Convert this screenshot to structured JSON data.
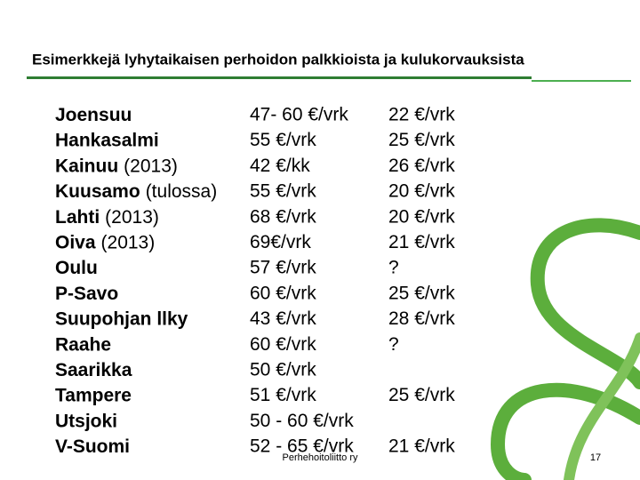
{
  "header": {
    "title": "Esimerkkejä lyhytaikaisen perhoidon palkkioista ja kulukorvauksista"
  },
  "table": {
    "rows": [
      {
        "name": "Joensuu",
        "fee": "47- 60 €/vrk",
        "cost": "22 €/vrk"
      },
      {
        "name": "Hankasalmi",
        "fee": "55 €/vrk",
        "cost": "25 €/vrk"
      },
      {
        "name": "Kainuu",
        "note": "(2013)",
        "fee": "42 €/kk",
        "cost": "26 €/vrk"
      },
      {
        "name": "Kuusamo",
        "note": "(tulossa)",
        "fee": "55 €/vrk",
        "cost": "20 €/vrk"
      },
      {
        "name": "Lahti",
        "note": "(2013)",
        "fee": "68 €/vrk",
        "cost": "20 €/vrk"
      },
      {
        "name": "Oiva",
        "note": "(2013)",
        "fee": "69€/vrk",
        "cost": "21 €/vrk"
      },
      {
        "name": "Oulu",
        "fee": "57 €/vrk",
        "cost": "?"
      },
      {
        "name": "P-Savo",
        "fee": "60 €/vrk",
        "cost": "25 €/vrk"
      },
      {
        "name": "Suupohjan llky",
        "fee": "43 €/vrk",
        "cost": "28 €/vrk"
      },
      {
        "name": "Raahe",
        "fee": "60 €/vrk",
        "cost": "?"
      },
      {
        "name": "Saarikka",
        "fee": "50 €/vrk"
      },
      {
        "name": "Tampere",
        "fee": "51 €/vrk",
        "cost": "25 €/vrk"
      },
      {
        "name": "Utsjoki",
        "fee": "50 - 60 €/vrk"
      },
      {
        "name": "V-Suomi",
        "fee": "52 - 65 €/vrk",
        "cost": "21 €/vrk"
      }
    ]
  },
  "footer": {
    "organization": "Perhehoitoliitto ry",
    "page": "17"
  }
}
